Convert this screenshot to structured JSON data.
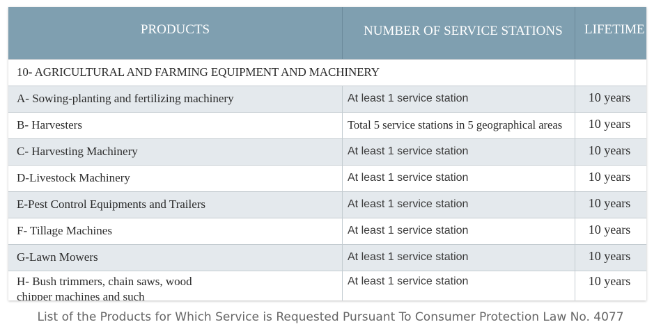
{
  "table": {
    "headers": {
      "products": "PRODUCTS",
      "stations": "NUMBER OF SERVICE STATIONS",
      "lifetime": "LIFETIME"
    },
    "section_title": "10- AGRICULTURAL AND FARMING EQUIPMENT AND MACHINERY",
    "rows": [
      {
        "product": "A- Sowing-planting and fertilizing machinery",
        "stations": "At least 1 service station",
        "lifetime": "10 years"
      },
      {
        "product": "B- Harvesters",
        "stations": "Total 5 service stations in 5 geographical areas",
        "lifetime": "10 years"
      },
      {
        "product": "C- Harvesting Machinery",
        "stations": "At least 1 service station",
        "lifetime": "10 years"
      },
      {
        "product": "D-Livestock Machinery",
        "stations": "At least 1 service station",
        "lifetime": "10 years"
      },
      {
        "product": "E-Pest Control Equipments and Trailers",
        "stations": "At least 1 service station",
        "lifetime": "10 years"
      },
      {
        "product": "F- Tillage Machines",
        "stations": "At least 1 service station",
        "lifetime": "10 years"
      },
      {
        "product": "G-Lawn Mowers",
        "stations": "At least 1 service station",
        "lifetime": "10 years"
      },
      {
        "product": "H- Bush trimmers, chain saws, wood chipper machines and such",
        "stations": "At least 1 service station",
        "lifetime": "10 years"
      }
    ]
  },
  "caption": "List of the Products for Which Service is Requested Pursuant To Consumer Protection Law No. 4077",
  "colors": {
    "header_bg": "#7f9fb0",
    "row_alt_bg": "#e4e9ed",
    "caption_text": "#666666"
  }
}
